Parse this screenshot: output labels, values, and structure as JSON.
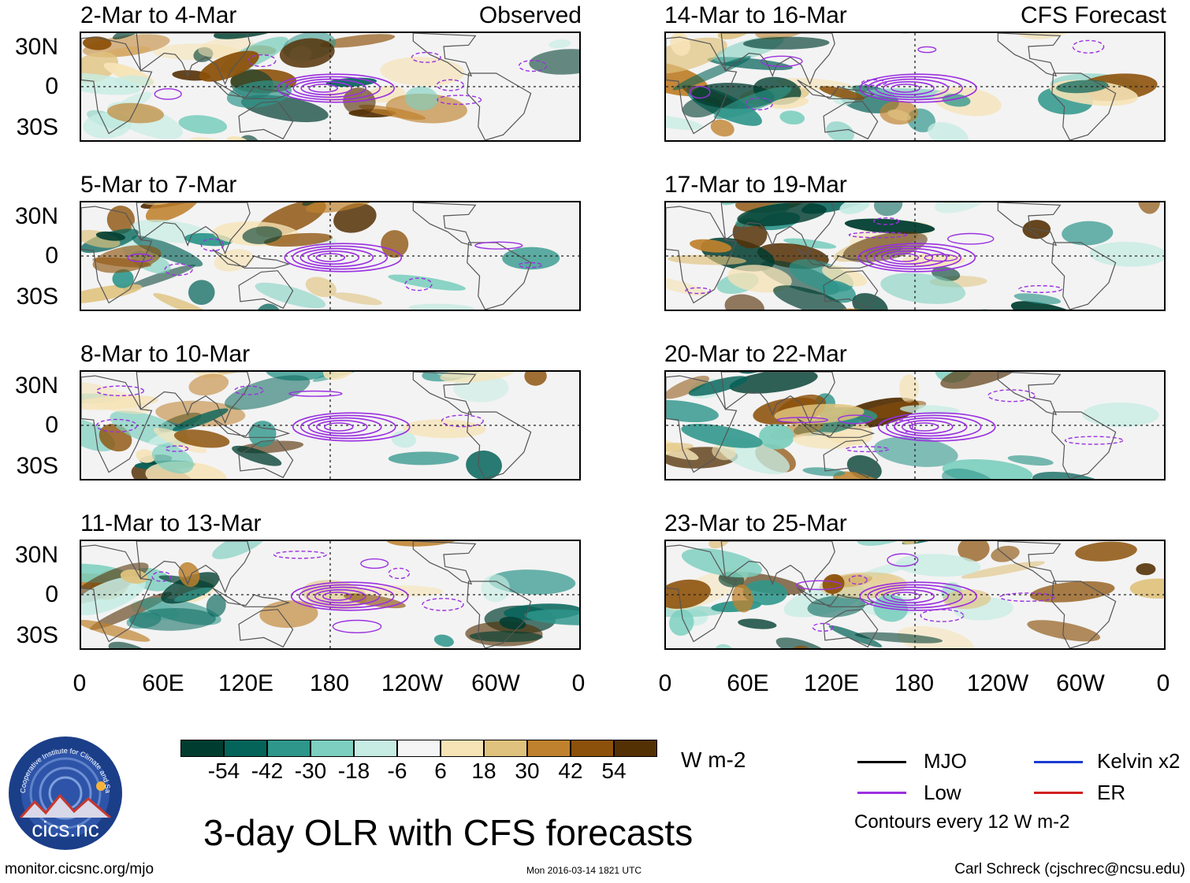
{
  "panels": [
    {
      "title": "2-Mar to 4-Mar",
      "tag": "Observed"
    },
    {
      "title": "14-Mar to 16-Mar",
      "tag": "CFS Forecast"
    },
    {
      "title": "5-Mar to 7-Mar",
      "tag": ""
    },
    {
      "title": "17-Mar to 19-Mar",
      "tag": ""
    },
    {
      "title": "8-Mar to 10-Mar",
      "tag": ""
    },
    {
      "title": "20-Mar to 22-Mar",
      "tag": ""
    },
    {
      "title": "11-Mar to 13-Mar",
      "tag": ""
    },
    {
      "title": "23-Mar to 25-Mar",
      "tag": ""
    }
  ],
  "y_ticks": [
    "30N",
    "0",
    "30S"
  ],
  "x_ticks": [
    "0",
    "60E",
    "120E",
    "180",
    "120W",
    "60W",
    "0"
  ],
  "colorbar": {
    "unit": "W m-2",
    "labels": [
      "-54",
      "-42",
      "-30",
      "-18",
      "-6",
      "6",
      "18",
      "30",
      "42",
      "54"
    ],
    "colors": [
      "#003d30",
      "#05645a",
      "#2f968b",
      "#7dcfbf",
      "#c6ece3",
      "#f5f5f5",
      "#f6e3b6",
      "#dfc27d",
      "#bf812d",
      "#8c510a",
      "#543005"
    ]
  },
  "title": "3-day OLR with CFS forecasts",
  "legend": {
    "items": [
      {
        "label": "MJO",
        "color": "#000000"
      },
      {
        "label": "Kelvin x2",
        "color": "#1a3bd1"
      },
      {
        "label": "Low",
        "color": "#9b30e0"
      },
      {
        "label": "ER",
        "color": "#d02020"
      }
    ],
    "note": "Contours every 12 W m-2"
  },
  "logo": {
    "text": "cics.nc",
    "ring": "Cooperative Institute for Climate and Satellites"
  },
  "footer": {
    "left": "monitor.cicsnc.org/mjo",
    "center": "Mon 2016-03-14 1821 UTC",
    "right": "Carl Schreck (cjschrec@ncsu.edu)"
  }
}
